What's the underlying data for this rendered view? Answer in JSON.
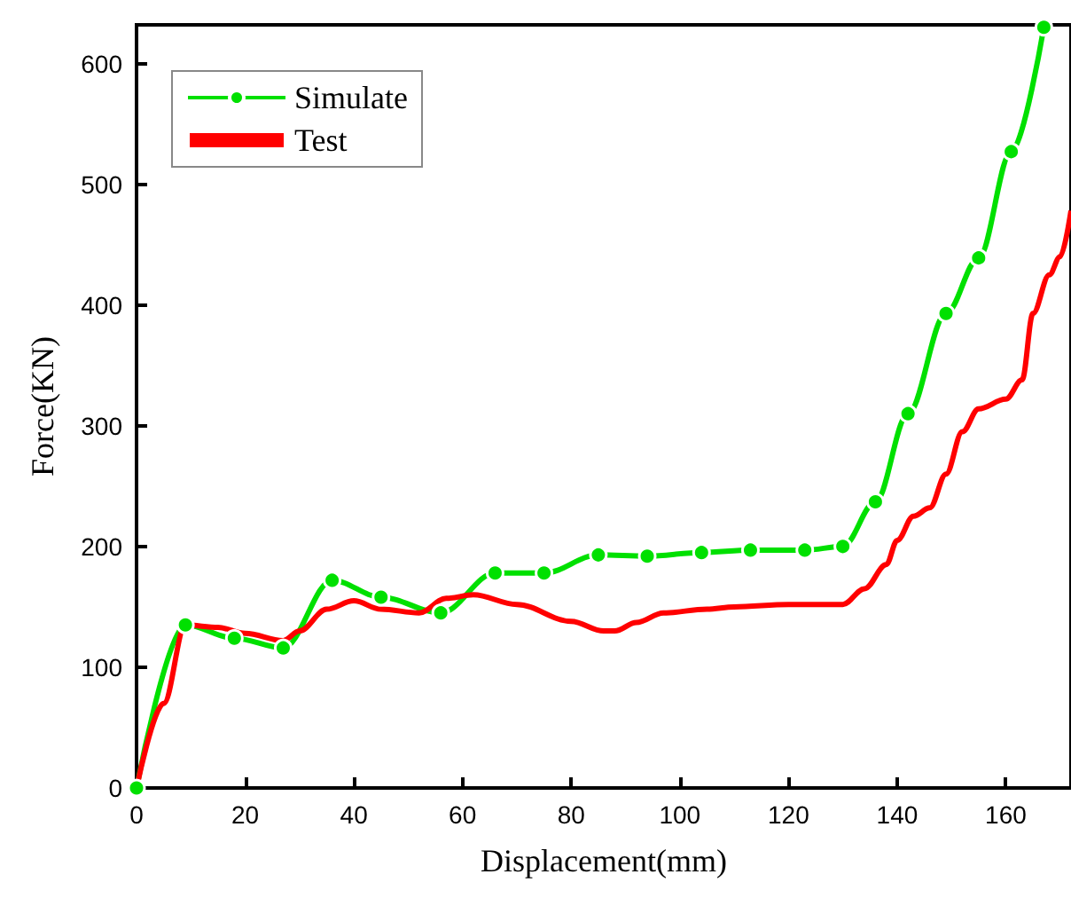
{
  "chart_data": {
    "type": "line",
    "xlabel": "Displacement(mm)",
    "ylabel": "Force(KN)",
    "xlim": [
      0,
      172
    ],
    "ylim": [
      0,
      632
    ],
    "xticks": [
      0,
      20,
      40,
      60,
      80,
      100,
      120,
      140,
      160
    ],
    "yticks": [
      0,
      100,
      200,
      300,
      400,
      500,
      600
    ],
    "legend": "top left",
    "grid": false,
    "series": [
      {
        "name": "Simulate",
        "color": "#00e000",
        "marker": "circle",
        "x": [
          0,
          9,
          18,
          27,
          36,
          45,
          56,
          66,
          75,
          85,
          94,
          104,
          113,
          123,
          130,
          136,
          142,
          149,
          155,
          161,
          167
        ],
        "values": [
          0,
          135,
          124,
          116,
          172,
          158,
          145,
          178,
          178,
          193,
          192,
          195,
          197,
          197,
          200,
          237,
          310,
          393,
          439,
          527,
          630
        ]
      },
      {
        "name": "Test",
        "color": "#ff0000",
        "marker": "none",
        "x": [
          0,
          5,
          9,
          15,
          20,
          27,
          30,
          35,
          40,
          45,
          52,
          57,
          62,
          70,
          80,
          86,
          88,
          92,
          97,
          105,
          110,
          120,
          130,
          134,
          138,
          140,
          143,
          146,
          149,
          152,
          155,
          160,
          163,
          165,
          168,
          170,
          172
        ],
        "values": [
          0,
          70,
          135,
          133,
          128,
          122,
          130,
          148,
          155,
          148,
          145,
          157,
          160,
          152,
          138,
          130,
          130,
          137,
          145,
          148,
          150,
          152,
          152,
          165,
          185,
          205,
          225,
          232,
          260,
          295,
          314,
          322,
          338,
          393,
          425,
          440,
          478
        ]
      }
    ]
  }
}
